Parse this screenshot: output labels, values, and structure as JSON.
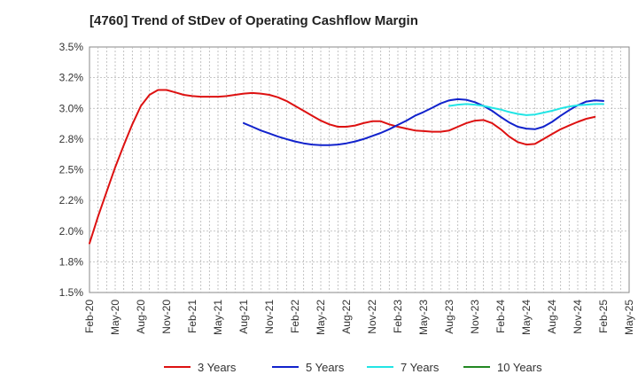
{
  "chart_data": {
    "type": "line",
    "title": "[4760]  Trend of StDev of Operating Cashflow Margin",
    "xlabel": "",
    "ylabel": "",
    "ylim": [
      1.5,
      3.5
    ],
    "y_ticks": [
      "3.5%",
      "3.2%",
      "3.0%",
      "2.8%",
      "2.5%",
      "2.2%",
      "2.0%",
      "1.8%",
      "1.5%"
    ],
    "y_tick_values": [
      3.5,
      3.25,
      3.0,
      2.75,
      2.5,
      2.25,
      2.0,
      1.75,
      1.5
    ],
    "x_ticks": [
      "Feb-20",
      "May-20",
      "Aug-20",
      "Nov-20",
      "Feb-21",
      "May-21",
      "Aug-21",
      "Nov-21",
      "Feb-22",
      "May-22",
      "Aug-22",
      "Nov-22",
      "Feb-23",
      "May-23",
      "Aug-23",
      "Nov-23",
      "Feb-24",
      "May-24",
      "Aug-24",
      "Nov-24",
      "Feb-25",
      "May-25"
    ],
    "x_tick_months": [
      0,
      3,
      6,
      9,
      12,
      15,
      18,
      21,
      24,
      27,
      30,
      33,
      36,
      39,
      42,
      45,
      48,
      51,
      54,
      57,
      60,
      63
    ],
    "x_range_months": [
      0,
      63
    ],
    "grid": true,
    "legend_position": "bottom",
    "series": [
      {
        "name": "3 Years",
        "color": "#dd1111",
        "points": [
          [
            0,
            1.9
          ],
          [
            1,
            2.12
          ],
          [
            2,
            2.32
          ],
          [
            3,
            2.52
          ],
          [
            4,
            2.7
          ],
          [
            5,
            2.87
          ],
          [
            6,
            3.02
          ],
          [
            7,
            3.11
          ],
          [
            8,
            3.15
          ],
          [
            9,
            3.15
          ],
          [
            10,
            3.13
          ],
          [
            11,
            3.11
          ],
          [
            12,
            3.1
          ],
          [
            13,
            3.095
          ],
          [
            14,
            3.095
          ],
          [
            15,
            3.095
          ],
          [
            16,
            3.1
          ],
          [
            17,
            3.11
          ],
          [
            18,
            3.12
          ],
          [
            19,
            3.125
          ],
          [
            20,
            3.12
          ],
          [
            21,
            3.11
          ],
          [
            22,
            3.09
          ],
          [
            23,
            3.06
          ],
          [
            24,
            3.02
          ],
          [
            25,
            2.98
          ],
          [
            26,
            2.94
          ],
          [
            27,
            2.9
          ],
          [
            28,
            2.87
          ],
          [
            29,
            2.85
          ],
          [
            30,
            2.85
          ],
          [
            31,
            2.86
          ],
          [
            32,
            2.88
          ],
          [
            33,
            2.895
          ],
          [
            34,
            2.895
          ],
          [
            35,
            2.87
          ],
          [
            36,
            2.85
          ],
          [
            37,
            2.835
          ],
          [
            38,
            2.82
          ],
          [
            39,
            2.815
          ],
          [
            40,
            2.81
          ],
          [
            41,
            2.81
          ],
          [
            42,
            2.82
          ],
          [
            43,
            2.85
          ],
          [
            44,
            2.88
          ],
          [
            45,
            2.9
          ],
          [
            46,
            2.905
          ],
          [
            47,
            2.88
          ],
          [
            48,
            2.83
          ],
          [
            49,
            2.77
          ],
          [
            50,
            2.725
          ],
          [
            51,
            2.705
          ],
          [
            52,
            2.71
          ],
          [
            53,
            2.75
          ],
          [
            54,
            2.79
          ],
          [
            55,
            2.83
          ],
          [
            56,
            2.86
          ],
          [
            57,
            2.89
          ],
          [
            58,
            2.915
          ],
          [
            59,
            2.93
          ]
        ]
      },
      {
        "name": "5 Years",
        "color": "#1122cc",
        "points": [
          [
            18,
            2.88
          ],
          [
            19,
            2.85
          ],
          [
            20,
            2.82
          ],
          [
            21,
            2.795
          ],
          [
            22,
            2.77
          ],
          [
            23,
            2.75
          ],
          [
            24,
            2.73
          ],
          [
            25,
            2.715
          ],
          [
            26,
            2.705
          ],
          [
            27,
            2.7
          ],
          [
            28,
            2.7
          ],
          [
            29,
            2.705
          ],
          [
            30,
            2.715
          ],
          [
            31,
            2.73
          ],
          [
            32,
            2.75
          ],
          [
            33,
            2.775
          ],
          [
            34,
            2.8
          ],
          [
            35,
            2.83
          ],
          [
            36,
            2.865
          ],
          [
            37,
            2.9
          ],
          [
            38,
            2.94
          ],
          [
            39,
            2.97
          ],
          [
            40,
            3.005
          ],
          [
            41,
            3.04
          ],
          [
            42,
            3.065
          ],
          [
            43,
            3.075
          ],
          [
            44,
            3.07
          ],
          [
            45,
            3.05
          ],
          [
            46,
            3.02
          ],
          [
            47,
            2.98
          ],
          [
            48,
            2.93
          ],
          [
            49,
            2.885
          ],
          [
            50,
            2.85
          ],
          [
            51,
            2.835
          ],
          [
            52,
            2.83
          ],
          [
            53,
            2.85
          ],
          [
            54,
            2.89
          ],
          [
            55,
            2.94
          ],
          [
            56,
            2.985
          ],
          [
            57,
            3.025
          ],
          [
            58,
            3.055
          ],
          [
            59,
            3.065
          ],
          [
            60,
            3.06
          ]
        ]
      },
      {
        "name": "7 Years",
        "color": "#22e5e5",
        "points": [
          [
            42,
            3.02
          ],
          [
            43,
            3.03
          ],
          [
            44,
            3.035
          ],
          [
            45,
            3.03
          ],
          [
            46,
            3.02
          ],
          [
            47,
            3.005
          ],
          [
            48,
            2.99
          ],
          [
            49,
            2.97
          ],
          [
            50,
            2.955
          ],
          [
            51,
            2.945
          ],
          [
            52,
            2.95
          ],
          [
            53,
            2.965
          ],
          [
            54,
            2.98
          ],
          [
            55,
            3.0
          ],
          [
            56,
            3.015
          ],
          [
            57,
            3.025
          ],
          [
            58,
            3.03
          ],
          [
            59,
            3.035
          ],
          [
            60,
            3.035
          ]
        ]
      },
      {
        "name": "10 Years",
        "color": "#228822",
        "points": []
      }
    ]
  }
}
